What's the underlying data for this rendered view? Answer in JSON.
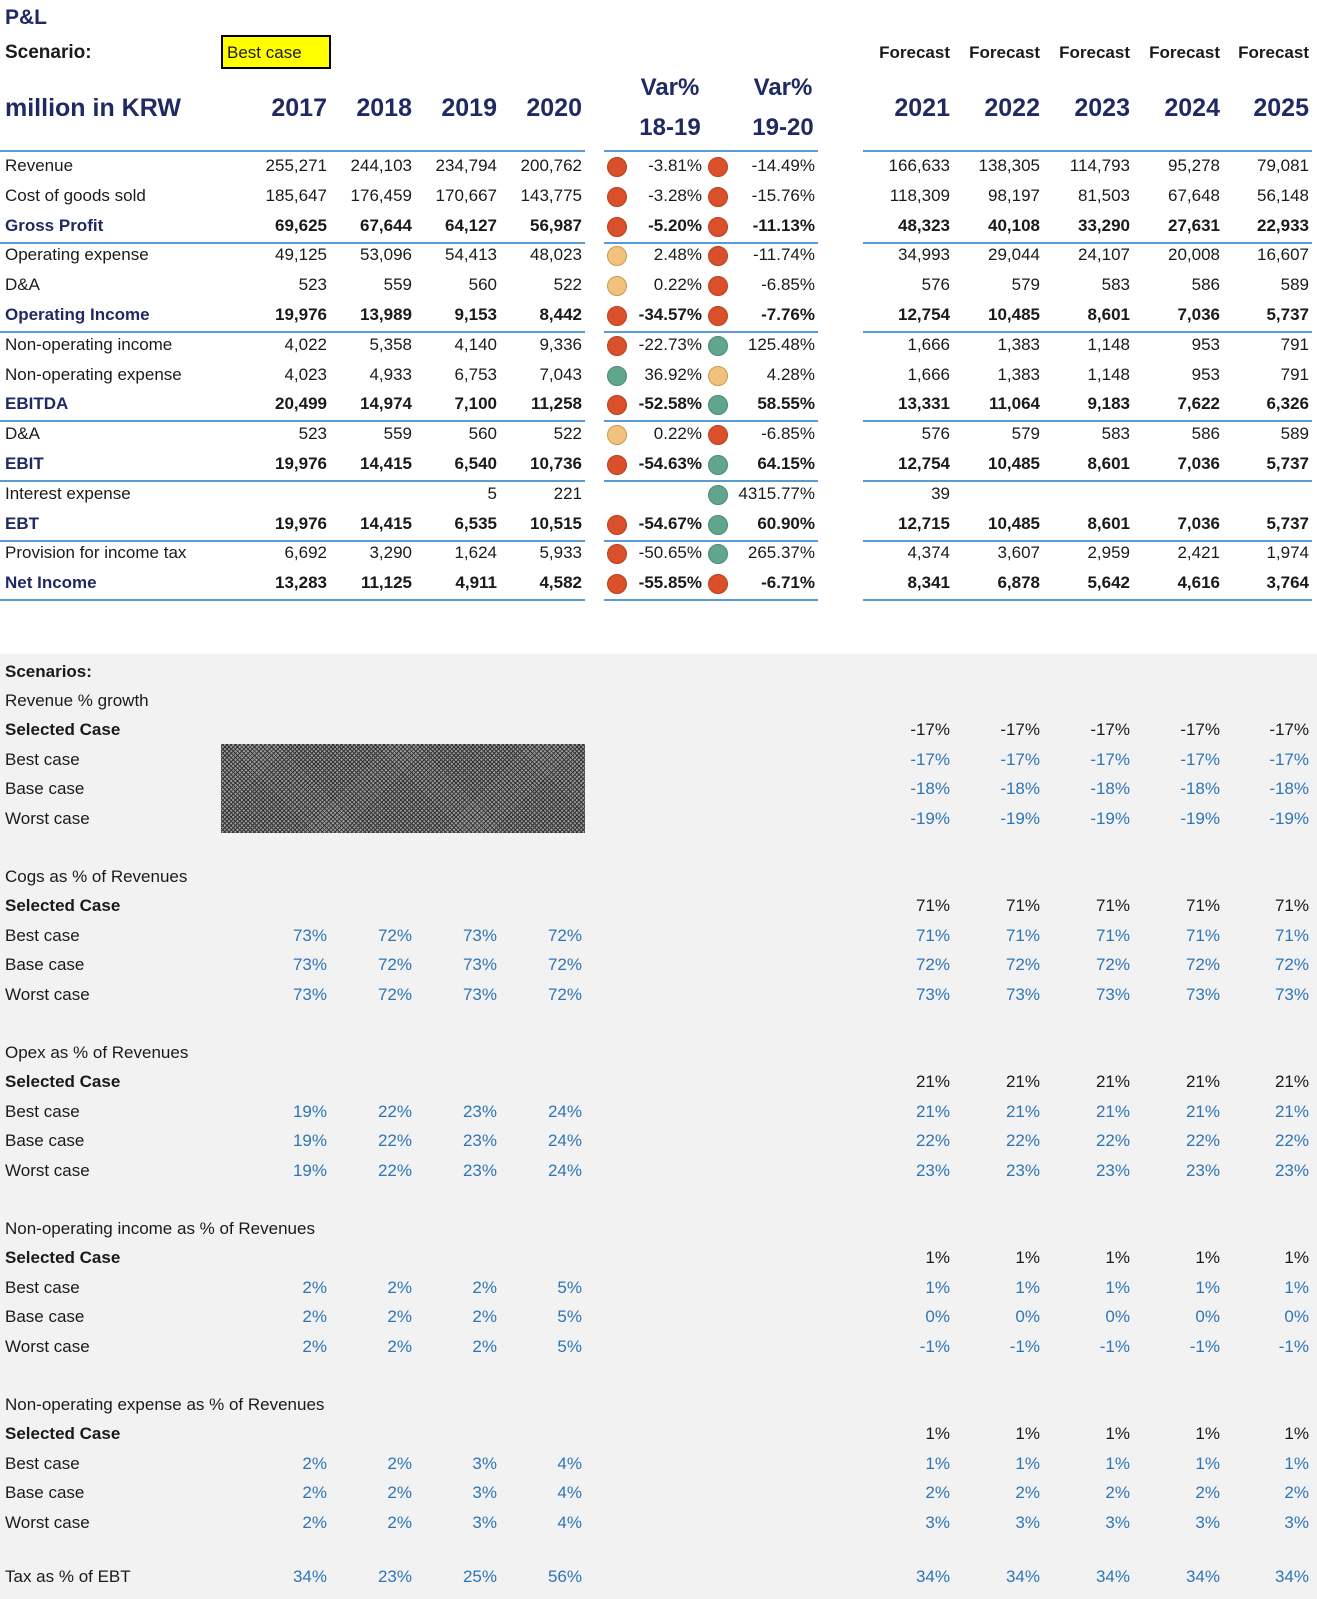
{
  "title": "P&L",
  "scenario_label": "Scenario:",
  "scenario_value": "Best case",
  "unit_label": "million in KRW",
  "hist_years": [
    "2017",
    "2018",
    "2019",
    "2020"
  ],
  "var_headers": [
    [
      "Var%",
      "18-19"
    ],
    [
      "Var%",
      "19-20"
    ]
  ],
  "forecast_label": "Forecast",
  "fc_years": [
    "2021",
    "2022",
    "2023",
    "2024",
    "2025"
  ],
  "status_colors": {
    "red": "#d9502a",
    "green": "#5fa68d",
    "yellow": "#f0c27b"
  },
  "pl_rows": [
    {
      "label": "Revenue",
      "bold": false,
      "hist": [
        "255,271",
        "244,103",
        "234,794",
        "200,762"
      ],
      "v1": "-3.81%",
      "d1": "red",
      "v2": "-14.49%",
      "d2": "red",
      "fc": [
        "166,633",
        "138,305",
        "114,793",
        "95,278",
        "79,081"
      ]
    },
    {
      "label": "Cost of goods sold",
      "bold": false,
      "hist": [
        "185,647",
        "176,459",
        "170,667",
        "143,775"
      ],
      "v1": "-3.28%",
      "d1": "red",
      "v2": "-15.76%",
      "d2": "red",
      "fc": [
        "118,309",
        "98,197",
        "81,503",
        "67,648",
        "56,148"
      ]
    },
    {
      "label": "Gross Profit",
      "bold": true,
      "line": true,
      "hist": [
        "69,625",
        "67,644",
        "64,127",
        "56,987"
      ],
      "v1": "-5.20%",
      "d1": "red",
      "v2": "-11.13%",
      "d2": "red",
      "fc": [
        "48,323",
        "40,108",
        "33,290",
        "27,631",
        "22,933"
      ]
    },
    {
      "label": "Operating expense",
      "bold": false,
      "hist": [
        "49,125",
        "53,096",
        "54,413",
        "48,023"
      ],
      "v1": "2.48%",
      "d1": "yellow",
      "v2": "-11.74%",
      "d2": "red",
      "fc": [
        "34,993",
        "29,044",
        "24,107",
        "20,008",
        "16,607"
      ]
    },
    {
      "label": "D&A",
      "bold": false,
      "hist": [
        "523",
        "559",
        "560",
        "522"
      ],
      "v1": "0.22%",
      "d1": "yellow",
      "v2": "-6.85%",
      "d2": "red",
      "fc": [
        "576",
        "579",
        "583",
        "586",
        "589"
      ]
    },
    {
      "label": "Operating Income",
      "bold": true,
      "line": true,
      "hist": [
        "19,976",
        "13,989",
        "9,153",
        "8,442"
      ],
      "v1": "-34.57%",
      "d1": "red",
      "v2": "-7.76%",
      "d2": "red",
      "fc": [
        "12,754",
        "10,485",
        "8,601",
        "7,036",
        "5,737"
      ]
    },
    {
      "label": "Non-operating income",
      "bold": false,
      "hist": [
        "4,022",
        "5,358",
        "4,140",
        "9,336"
      ],
      "v1": "-22.73%",
      "d1": "red",
      "v2": "125.48%",
      "d2": "green",
      "fc": [
        "1,666",
        "1,383",
        "1,148",
        "953",
        "791"
      ]
    },
    {
      "label": "Non-operating expense",
      "bold": false,
      "hist": [
        "4,023",
        "4,933",
        "6,753",
        "7,043"
      ],
      "v1": "36.92%",
      "d1": "green",
      "v2": "4.28%",
      "d2": "yellow",
      "fc": [
        "1,666",
        "1,383",
        "1,148",
        "953",
        "791"
      ]
    },
    {
      "label": "EBITDA",
      "bold": true,
      "line": true,
      "hist": [
        "20,499",
        "14,974",
        "7,100",
        "11,258"
      ],
      "v1": "-52.58%",
      "d1": "red",
      "v2": "58.55%",
      "d2": "green",
      "fc": [
        "13,331",
        "11,064",
        "9,183",
        "7,622",
        "6,326"
      ]
    },
    {
      "label": "D&A",
      "bold": false,
      "hist": [
        "523",
        "559",
        "560",
        "522"
      ],
      "v1": "0.22%",
      "d1": "yellow",
      "v2": "-6.85%",
      "d2": "red",
      "fc": [
        "576",
        "579",
        "583",
        "586",
        "589"
      ]
    },
    {
      "label": "EBIT",
      "bold": true,
      "line": true,
      "hist": [
        "19,976",
        "14,415",
        "6,540",
        "10,736"
      ],
      "v1": "-54.63%",
      "d1": "red",
      "v2": "64.15%",
      "d2": "green",
      "fc": [
        "12,754",
        "10,485",
        "8,601",
        "7,036",
        "5,737"
      ]
    },
    {
      "label": "Interest expense",
      "bold": false,
      "hist": [
        "",
        "",
        "5",
        "221"
      ],
      "v1": "",
      "d1": "",
      "v2": "4315.77%",
      "d2": "green",
      "fc": [
        "39",
        "",
        "",
        "",
        ""
      ]
    },
    {
      "label": "EBT",
      "bold": true,
      "line": true,
      "hist": [
        "19,976",
        "14,415",
        "6,535",
        "10,515"
      ],
      "v1": "-54.67%",
      "d1": "red",
      "v2": "60.90%",
      "d2": "green",
      "fc": [
        "12,715",
        "10,485",
        "8,601",
        "7,036",
        "5,737"
      ]
    },
    {
      "label": "Provision for income tax",
      "bold": false,
      "hist": [
        "6,692",
        "3,290",
        "1,624",
        "5,933"
      ],
      "v1": "-50.65%",
      "d1": "red",
      "v2": "265.37%",
      "d2": "green",
      "fc": [
        "4,374",
        "3,607",
        "2,959",
        "2,421",
        "1,974"
      ]
    },
    {
      "label": "Net Income",
      "bold": true,
      "line": true,
      "hist": [
        "13,283",
        "11,125",
        "4,911",
        "4,582"
      ],
      "v1": "-55.85%",
      "d1": "red",
      "v2": "-6.71%",
      "d2": "red",
      "fc": [
        "8,341",
        "6,878",
        "5,642",
        "4,616",
        "3,764"
      ]
    }
  ],
  "scenarios_title": "Scenarios:",
  "scenario_sections": [
    {
      "title": "Revenue % growth",
      "hatched": true,
      "rows": [
        {
          "label": "Selected Case",
          "bold": true,
          "hist": [
            "",
            "",
            "",
            ""
          ],
          "fc": [
            "-17%",
            "-17%",
            "-17%",
            "-17%",
            "-17%"
          ]
        },
        {
          "label": "Best case",
          "bold": false,
          "hist": [
            "",
            "",
            "",
            ""
          ],
          "fc": [
            "-17%",
            "-17%",
            "-17%",
            "-17%",
            "-17%"
          ]
        },
        {
          "label": "Base case",
          "bold": false,
          "hist": [
            "",
            "",
            "",
            ""
          ],
          "fc": [
            "-18%",
            "-18%",
            "-18%",
            "-18%",
            "-18%"
          ]
        },
        {
          "label": "Worst case",
          "bold": false,
          "hist": [
            "",
            "",
            "",
            ""
          ],
          "fc": [
            "-19%",
            "-19%",
            "-19%",
            "-19%",
            "-19%"
          ]
        }
      ]
    },
    {
      "title": "Cogs as % of Revenues",
      "rows": [
        {
          "label": "Selected Case",
          "bold": true,
          "hist": [
            "",
            "",
            "",
            ""
          ],
          "fc": [
            "71%",
            "71%",
            "71%",
            "71%",
            "71%"
          ]
        },
        {
          "label": "Best case",
          "bold": false,
          "hist": [
            "73%",
            "72%",
            "73%",
            "72%"
          ],
          "fc": [
            "71%",
            "71%",
            "71%",
            "71%",
            "71%"
          ]
        },
        {
          "label": "Base case",
          "bold": false,
          "hist": [
            "73%",
            "72%",
            "73%",
            "72%"
          ],
          "fc": [
            "72%",
            "72%",
            "72%",
            "72%",
            "72%"
          ]
        },
        {
          "label": "Worst case",
          "bold": false,
          "hist": [
            "73%",
            "72%",
            "73%",
            "72%"
          ],
          "fc": [
            "73%",
            "73%",
            "73%",
            "73%",
            "73%"
          ]
        }
      ]
    },
    {
      "title": "Opex as % of Revenues",
      "rows": [
        {
          "label": "Selected Case",
          "bold": true,
          "hist": [
            "",
            "",
            "",
            ""
          ],
          "fc": [
            "21%",
            "21%",
            "21%",
            "21%",
            "21%"
          ]
        },
        {
          "label": "Best case",
          "bold": false,
          "hist": [
            "19%",
            "22%",
            "23%",
            "24%"
          ],
          "fc": [
            "21%",
            "21%",
            "21%",
            "21%",
            "21%"
          ]
        },
        {
          "label": "Base case",
          "bold": false,
          "hist": [
            "19%",
            "22%",
            "23%",
            "24%"
          ],
          "fc": [
            "22%",
            "22%",
            "22%",
            "22%",
            "22%"
          ]
        },
        {
          "label": "Worst case",
          "bold": false,
          "hist": [
            "19%",
            "22%",
            "23%",
            "24%"
          ],
          "fc": [
            "23%",
            "23%",
            "23%",
            "23%",
            "23%"
          ]
        }
      ]
    },
    {
      "title": "Non-operating income as % of Revenues",
      "rows": [
        {
          "label": "Selected Case",
          "bold": true,
          "hist": [
            "",
            "",
            "",
            ""
          ],
          "fc": [
            "1%",
            "1%",
            "1%",
            "1%",
            "1%"
          ]
        },
        {
          "label": "Best case",
          "bold": false,
          "hist": [
            "2%",
            "2%",
            "2%",
            "5%"
          ],
          "fc": [
            "1%",
            "1%",
            "1%",
            "1%",
            "1%"
          ]
        },
        {
          "label": "Base case",
          "bold": false,
          "hist": [
            "2%",
            "2%",
            "2%",
            "5%"
          ],
          "fc": [
            "0%",
            "0%",
            "0%",
            "0%",
            "0%"
          ]
        },
        {
          "label": "Worst case",
          "bold": false,
          "hist": [
            "2%",
            "2%",
            "2%",
            "5%"
          ],
          "fc": [
            "-1%",
            "-1%",
            "-1%",
            "-1%",
            "-1%"
          ]
        }
      ]
    },
    {
      "title": "Non-operating expense as % of Revenues",
      "rows": [
        {
          "label": "Selected Case",
          "bold": true,
          "hist": [
            "",
            "",
            "",
            ""
          ],
          "fc": [
            "1%",
            "1%",
            "1%",
            "1%",
            "1%"
          ]
        },
        {
          "label": "Best case",
          "bold": false,
          "hist": [
            "2%",
            "2%",
            "3%",
            "4%"
          ],
          "fc": [
            "1%",
            "1%",
            "1%",
            "1%",
            "1%"
          ]
        },
        {
          "label": "Base case",
          "bold": false,
          "hist": [
            "2%",
            "2%",
            "3%",
            "4%"
          ],
          "fc": [
            "2%",
            "2%",
            "2%",
            "2%",
            "2%"
          ]
        },
        {
          "label": "Worst case",
          "bold": false,
          "hist": [
            "2%",
            "2%",
            "3%",
            "4%"
          ],
          "fc": [
            "3%",
            "3%",
            "3%",
            "3%",
            "3%"
          ]
        }
      ]
    }
  ],
  "tax_row": {
    "label": "Tax as % of EBT",
    "hist": [
      "34%",
      "23%",
      "25%",
      "56%"
    ],
    "fc": [
      "34%",
      "34%",
      "34%",
      "34%",
      "34%"
    ]
  }
}
